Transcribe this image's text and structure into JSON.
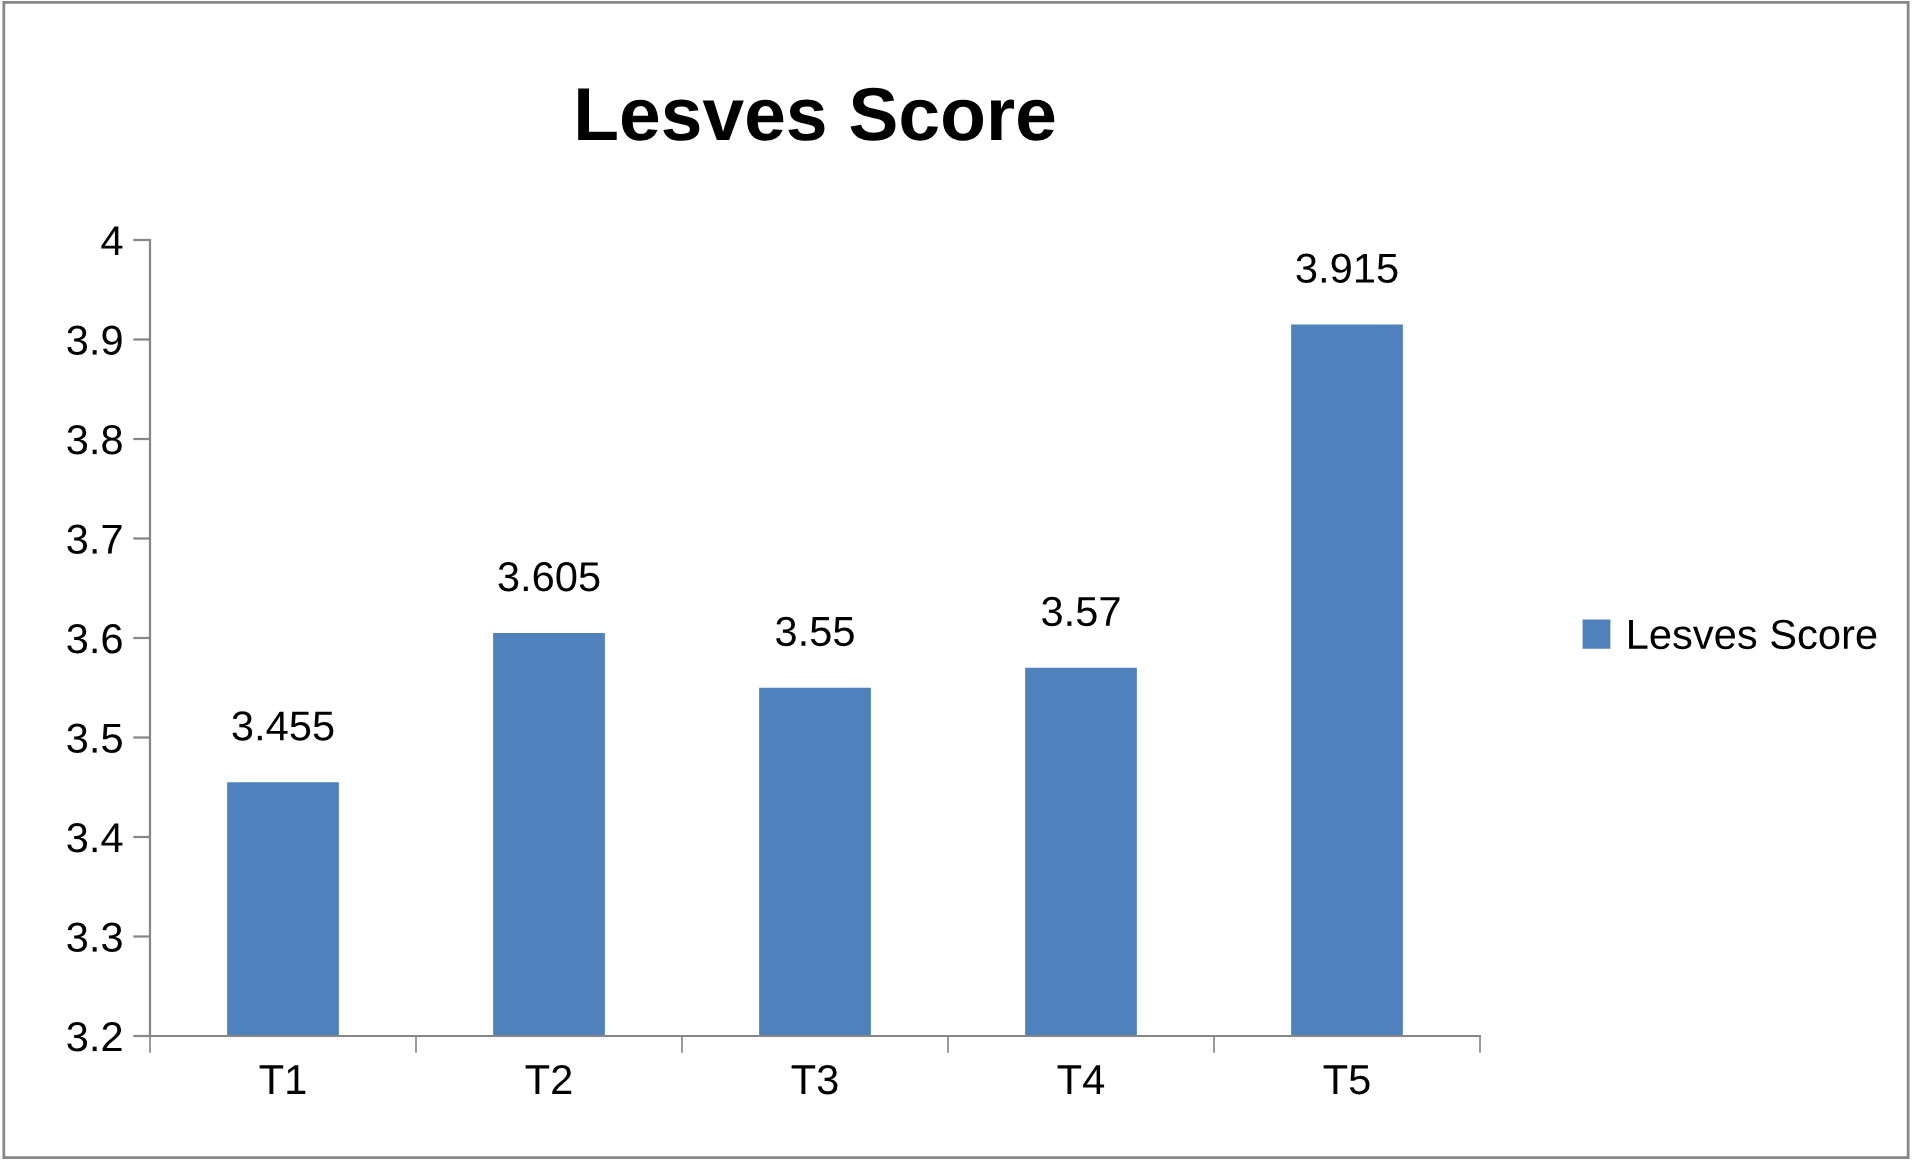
{
  "chart_data": {
    "type": "bar",
    "title": "Lesves Score",
    "categories": [
      "T1",
      "T2",
      "T3",
      "T4",
      "T5"
    ],
    "series": [
      {
        "name": "Lesves Score",
        "color": "#4f81bd",
        "values": [
          3.455,
          3.605,
          3.55,
          3.57,
          3.915
        ]
      }
    ],
    "ylim": [
      3.2,
      4
    ],
    "yticks": [
      3.2,
      3.3,
      3.4,
      3.5,
      3.6,
      3.7,
      3.8,
      3.9,
      4
    ],
    "data_labels": true,
    "grid": false,
    "legend": "right"
  }
}
